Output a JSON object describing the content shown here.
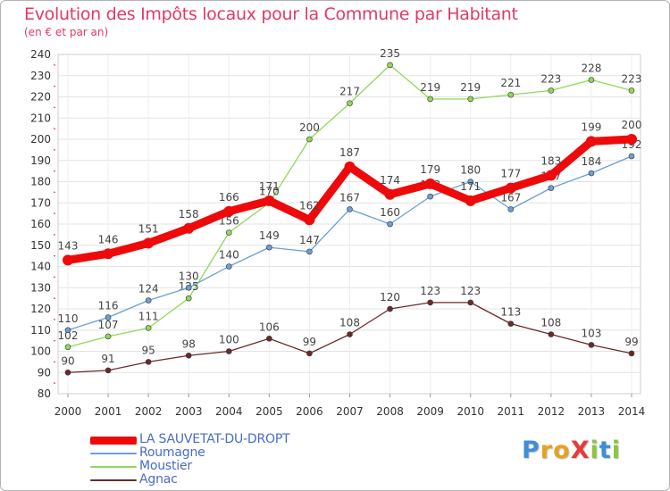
{
  "header": {
    "title": "Evolution des Impôts locaux pour la Commune par Habitant",
    "subtitle": "(en € et par an)"
  },
  "brand": {
    "letters": [
      {
        "char": "P",
        "color": "#3d8fd6"
      },
      {
        "char": "r",
        "color": "#e6a125"
      },
      {
        "char": "o",
        "color": "#e6a125"
      },
      {
        "char": "X",
        "color": "#e83a3a"
      },
      {
        "char": "i",
        "color": "#8cc63f"
      },
      {
        "char": "t",
        "color": "#3d8fd6"
      },
      {
        "char": "i",
        "color": "#8cc63f"
      }
    ]
  },
  "chart_data": {
    "type": "line",
    "title": "Evolution des Impôts locaux pour la Commune par Habitant",
    "subtitle": "(en € et par an)",
    "xlabel": "",
    "ylabel": "",
    "ylim": [
      80,
      240
    ],
    "yticks": [
      80,
      90,
      100,
      110,
      120,
      130,
      140,
      150,
      160,
      170,
      180,
      190,
      200,
      210,
      220,
      230,
      240
    ],
    "grid": true,
    "legend_position": "bottom-left",
    "x": [
      "2000",
      "2001",
      "2002",
      "2003",
      "2004",
      "2005",
      "2006",
      "2007",
      "2008",
      "2009",
      "2010",
      "2011",
      "2012",
      "2013",
      "2014"
    ],
    "series": [
      {
        "name": "Agnac",
        "color": "#6b2a2a",
        "values": [
          90,
          91,
          95,
          98,
          100,
          106,
          99,
          108,
          120,
          123,
          123,
          113,
          108,
          103,
          99
        ]
      },
      {
        "name": "Moustier",
        "color": "#8fd95a",
        "values": [
          102,
          107,
          111,
          125,
          156,
          170,
          200,
          217,
          235,
          219,
          219,
          221,
          223,
          228,
          223
        ]
      },
      {
        "name": "Roumagne",
        "color": "#6c9fd3",
        "values": [
          110,
          116,
          124,
          130,
          140,
          149,
          147,
          167,
          160,
          173,
          180,
          167,
          177,
          184,
          192
        ]
      },
      {
        "name": "LA SAUVETAT-DU-DROPT",
        "color": "#ee0a0a",
        "values": [
          143,
          146,
          151,
          158,
          166,
          171,
          162,
          187,
          174,
          179,
          171,
          177,
          183,
          199,
          200
        ]
      }
    ],
    "legend_order": [
      "LA SAUVETAT-DU-DROPT",
      "Roumagne",
      "Moustier",
      "Agnac"
    ]
  }
}
